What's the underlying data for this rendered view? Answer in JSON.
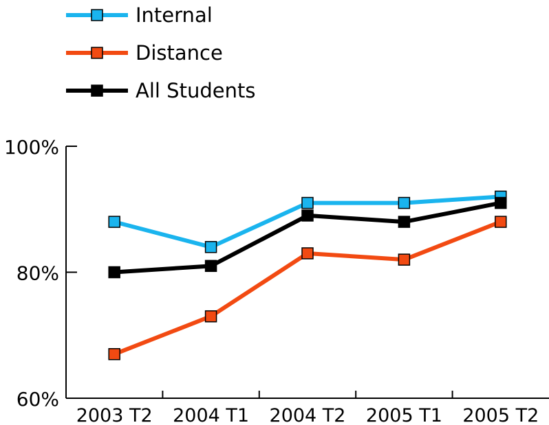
{
  "chart_data": {
    "type": "line",
    "title": "",
    "xlabel": "",
    "ylabel": "",
    "categories": [
      "2003 T2",
      "2004 T1",
      "2004 T2",
      "2005 T1",
      "2005 T2"
    ],
    "ylim": [
      60,
      100
    ],
    "yticks": [
      60,
      80,
      100
    ],
    "ytick_labels": [
      "60%",
      "80%",
      "100%"
    ],
    "grid": false,
    "legend_position": "top-left",
    "series": [
      {
        "name": "Internal",
        "color": "#1ab4ee",
        "marker_fill": "#1ab4ee",
        "values": [
          88,
          84,
          91,
          91,
          92
        ]
      },
      {
        "name": "Distance",
        "color": "#f24a12",
        "marker_fill": "#f24a12",
        "values": [
          67,
          73,
          83,
          82,
          88
        ]
      },
      {
        "name": "All Students",
        "color": "#000000",
        "marker_fill": "#000000",
        "values": [
          80,
          81,
          89,
          88,
          91
        ]
      }
    ]
  }
}
